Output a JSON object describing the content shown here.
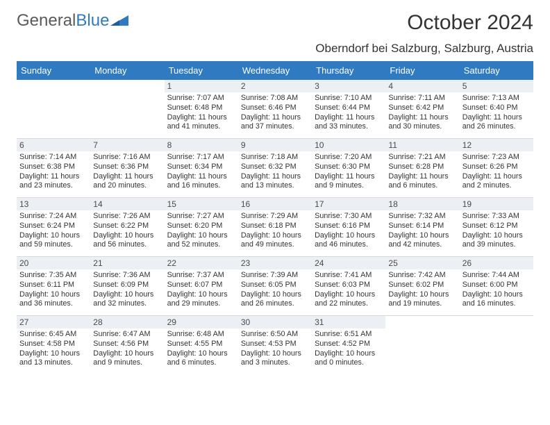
{
  "brand": {
    "part1": "General",
    "part2": "Blue"
  },
  "title": "October 2024",
  "location": "Oberndorf bei Salzburg, Salzburg, Austria",
  "colors": {
    "header_bar": "#2f7ac0",
    "daynum_bg": "#eceff3",
    "text": "#333333",
    "row_divider": "#d8d8d8",
    "logo_accent": "#2f7ac0",
    "logo_text": "#5a5a5a"
  },
  "days_of_week": [
    "Sunday",
    "Monday",
    "Tuesday",
    "Wednesday",
    "Thursday",
    "Friday",
    "Saturday"
  ],
  "weeks": [
    [
      null,
      null,
      {
        "n": "1",
        "sr": "7:07 AM",
        "ss": "6:48 PM",
        "dl": "11 hours and 41 minutes."
      },
      {
        "n": "2",
        "sr": "7:08 AM",
        "ss": "6:46 PM",
        "dl": "11 hours and 37 minutes."
      },
      {
        "n": "3",
        "sr": "7:10 AM",
        "ss": "6:44 PM",
        "dl": "11 hours and 33 minutes."
      },
      {
        "n": "4",
        "sr": "7:11 AM",
        "ss": "6:42 PM",
        "dl": "11 hours and 30 minutes."
      },
      {
        "n": "5",
        "sr": "7:13 AM",
        "ss": "6:40 PM",
        "dl": "11 hours and 26 minutes."
      }
    ],
    [
      {
        "n": "6",
        "sr": "7:14 AM",
        "ss": "6:38 PM",
        "dl": "11 hours and 23 minutes."
      },
      {
        "n": "7",
        "sr": "7:16 AM",
        "ss": "6:36 PM",
        "dl": "11 hours and 20 minutes."
      },
      {
        "n": "8",
        "sr": "7:17 AM",
        "ss": "6:34 PM",
        "dl": "11 hours and 16 minutes."
      },
      {
        "n": "9",
        "sr": "7:18 AM",
        "ss": "6:32 PM",
        "dl": "11 hours and 13 minutes."
      },
      {
        "n": "10",
        "sr": "7:20 AM",
        "ss": "6:30 PM",
        "dl": "11 hours and 9 minutes."
      },
      {
        "n": "11",
        "sr": "7:21 AM",
        "ss": "6:28 PM",
        "dl": "11 hours and 6 minutes."
      },
      {
        "n": "12",
        "sr": "7:23 AM",
        "ss": "6:26 PM",
        "dl": "11 hours and 2 minutes."
      }
    ],
    [
      {
        "n": "13",
        "sr": "7:24 AM",
        "ss": "6:24 PM",
        "dl": "10 hours and 59 minutes."
      },
      {
        "n": "14",
        "sr": "7:26 AM",
        "ss": "6:22 PM",
        "dl": "10 hours and 56 minutes."
      },
      {
        "n": "15",
        "sr": "7:27 AM",
        "ss": "6:20 PM",
        "dl": "10 hours and 52 minutes."
      },
      {
        "n": "16",
        "sr": "7:29 AM",
        "ss": "6:18 PM",
        "dl": "10 hours and 49 minutes."
      },
      {
        "n": "17",
        "sr": "7:30 AM",
        "ss": "6:16 PM",
        "dl": "10 hours and 46 minutes."
      },
      {
        "n": "18",
        "sr": "7:32 AM",
        "ss": "6:14 PM",
        "dl": "10 hours and 42 minutes."
      },
      {
        "n": "19",
        "sr": "7:33 AM",
        "ss": "6:12 PM",
        "dl": "10 hours and 39 minutes."
      }
    ],
    [
      {
        "n": "20",
        "sr": "7:35 AM",
        "ss": "6:11 PM",
        "dl": "10 hours and 36 minutes."
      },
      {
        "n": "21",
        "sr": "7:36 AM",
        "ss": "6:09 PM",
        "dl": "10 hours and 32 minutes."
      },
      {
        "n": "22",
        "sr": "7:37 AM",
        "ss": "6:07 PM",
        "dl": "10 hours and 29 minutes."
      },
      {
        "n": "23",
        "sr": "7:39 AM",
        "ss": "6:05 PM",
        "dl": "10 hours and 26 minutes."
      },
      {
        "n": "24",
        "sr": "7:41 AM",
        "ss": "6:03 PM",
        "dl": "10 hours and 22 minutes."
      },
      {
        "n": "25",
        "sr": "7:42 AM",
        "ss": "6:02 PM",
        "dl": "10 hours and 19 minutes."
      },
      {
        "n": "26",
        "sr": "7:44 AM",
        "ss": "6:00 PM",
        "dl": "10 hours and 16 minutes."
      }
    ],
    [
      {
        "n": "27",
        "sr": "6:45 AM",
        "ss": "4:58 PM",
        "dl": "10 hours and 13 minutes."
      },
      {
        "n": "28",
        "sr": "6:47 AM",
        "ss": "4:56 PM",
        "dl": "10 hours and 9 minutes."
      },
      {
        "n": "29",
        "sr": "6:48 AM",
        "ss": "4:55 PM",
        "dl": "10 hours and 6 minutes."
      },
      {
        "n": "30",
        "sr": "6:50 AM",
        "ss": "4:53 PM",
        "dl": "10 hours and 3 minutes."
      },
      {
        "n": "31",
        "sr": "6:51 AM",
        "ss": "4:52 PM",
        "dl": "10 hours and 0 minutes."
      },
      null,
      null
    ]
  ],
  "labels": {
    "sunrise": "Sunrise: ",
    "sunset": "Sunset: ",
    "daylight": "Daylight: "
  }
}
